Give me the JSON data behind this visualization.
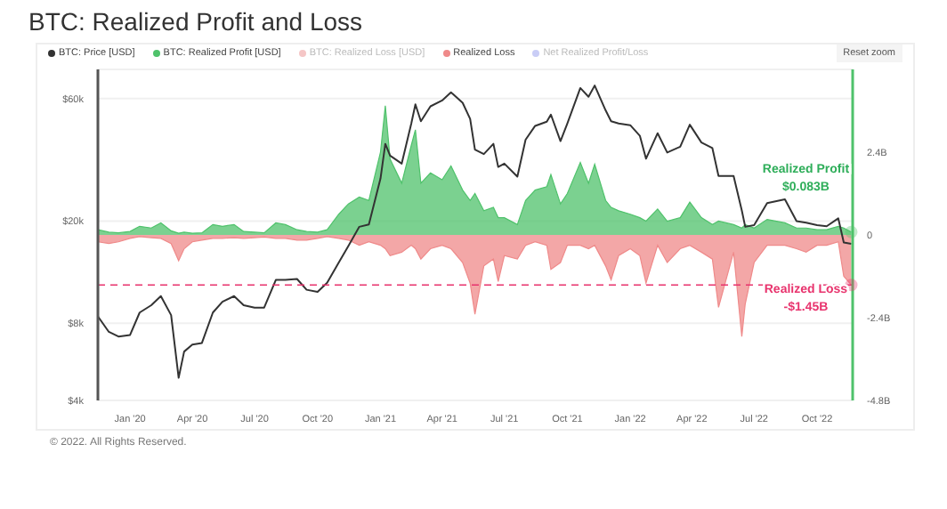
{
  "chart_data": {
    "type": "line",
    "title": "BTC: Realized Profit and Loss",
    "x": [
      "2019-11-15",
      "2019-12-01",
      "2019-12-15",
      "2020-01-01",
      "2020-01-15",
      "2020-02-01",
      "2020-02-15",
      "2020-03-01",
      "2020-03-12",
      "2020-03-20",
      "2020-04-01",
      "2020-04-15",
      "2020-05-01",
      "2020-05-15",
      "2020-06-01",
      "2020-06-15",
      "2020-07-01",
      "2020-07-15",
      "2020-08-01",
      "2020-08-15",
      "2020-09-01",
      "2020-09-15",
      "2020-10-01",
      "2020-10-15",
      "2020-11-01",
      "2020-11-15",
      "2020-12-01",
      "2020-12-15",
      "2021-01-01",
      "2021-01-08",
      "2021-01-15",
      "2021-02-01",
      "2021-02-15",
      "2021-02-21",
      "2021-03-01",
      "2021-03-15",
      "2021-04-01",
      "2021-04-14",
      "2021-05-01",
      "2021-05-12",
      "2021-05-19",
      "2021-06-01",
      "2021-06-15",
      "2021-06-22",
      "2021-07-01",
      "2021-07-20",
      "2021-08-01",
      "2021-08-15",
      "2021-09-01",
      "2021-09-07",
      "2021-09-21",
      "2021-10-01",
      "2021-10-20",
      "2021-11-01",
      "2021-11-10",
      "2021-11-26",
      "2021-12-04",
      "2021-12-15",
      "2022-01-01",
      "2022-01-15",
      "2022-01-24",
      "2022-02-10",
      "2022-02-24",
      "2022-03-15",
      "2022-03-29",
      "2022-04-15",
      "2022-05-01",
      "2022-05-10",
      "2022-06-01",
      "2022-06-13",
      "2022-06-18",
      "2022-07-01",
      "2022-07-20",
      "2022-08-15",
      "2022-09-01",
      "2022-09-15",
      "2022-10-01",
      "2022-10-15",
      "2022-11-01",
      "2022-11-09",
      "2022-11-20"
    ],
    "series": [
      {
        "name": "BTC: Price [USD]",
        "color": "#333333",
        "values": [
          8500,
          7400,
          7100,
          7200,
          8800,
          9400,
          10200,
          8600,
          4900,
          6200,
          6600,
          6700,
          8800,
          9700,
          10200,
          9400,
          9200,
          9200,
          11800,
          11800,
          11900,
          10800,
          10600,
          11500,
          13800,
          16000,
          19000,
          19400,
          29300,
          40000,
          36000,
          33500,
          48000,
          57000,
          49000,
          56000,
          59000,
          63500,
          57800,
          50000,
          38000,
          36500,
          40000,
          32500,
          33500,
          29800,
          41500,
          47000,
          48800,
          52000,
          41000,
          48000,
          66000,
          61000,
          67500,
          54000,
          49000,
          48000,
          47300,
          43000,
          35000,
          44000,
          37000,
          39000,
          47500,
          40500,
          38500,
          30000,
          30000,
          22000,
          19000,
          19300,
          23500,
          24300,
          20000,
          19700,
          19300,
          19100,
          20500,
          16500,
          16300
        ]
      },
      {
        "name": "BTC: Realized Profit [USD]",
        "type": "area",
        "axis": "y2",
        "color": "#4fc26b",
        "values": [
          0.15,
          0.08,
          0.06,
          0.1,
          0.25,
          0.2,
          0.35,
          0.12,
          0.05,
          0.08,
          0.05,
          0.06,
          0.3,
          0.25,
          0.3,
          0.1,
          0.08,
          0.06,
          0.35,
          0.3,
          0.15,
          0.1,
          0.08,
          0.15,
          0.6,
          0.9,
          1.1,
          1.0,
          2.4,
          3.75,
          2.2,
          1.5,
          2.6,
          3.05,
          1.5,
          1.8,
          1.6,
          2.0,
          1.3,
          1.0,
          1.2,
          0.7,
          0.8,
          0.5,
          0.5,
          0.3,
          1.0,
          1.3,
          1.4,
          1.75,
          0.9,
          1.2,
          2.1,
          1.5,
          2.05,
          1.0,
          0.8,
          0.7,
          0.6,
          0.5,
          0.4,
          0.75,
          0.4,
          0.5,
          0.95,
          0.5,
          0.3,
          0.4,
          0.3,
          0.2,
          0.3,
          0.2,
          0.45,
          0.35,
          0.2,
          0.2,
          0.15,
          0.15,
          0.25,
          0.2,
          0.083
        ]
      },
      {
        "name": "BTC: Realized Loss [USD]",
        "type": "area",
        "axis": "y2",
        "color": "#f5c6c6",
        "values": [
          null,
          null,
          null,
          null,
          null,
          null,
          null,
          null,
          null,
          null,
          null,
          null,
          null,
          null,
          null,
          null,
          null,
          null,
          null,
          null,
          null,
          null,
          null,
          null,
          null,
          null,
          null,
          null,
          null,
          null,
          null,
          null,
          null,
          null,
          null,
          null,
          null,
          null,
          null,
          null,
          null,
          null,
          null,
          null,
          null,
          null,
          null,
          null,
          null,
          null,
          null,
          null,
          null,
          null,
          null,
          null,
          null,
          null,
          null,
          null,
          null,
          null,
          null,
          null,
          null,
          null,
          null,
          null,
          null,
          null,
          null,
          null,
          null,
          null,
          null,
          null,
          null,
          null,
          null,
          null,
          null
        ]
      },
      {
        "name": "Realized Loss",
        "type": "area",
        "axis": "y2",
        "color": "#ef8a8a",
        "values": [
          -0.2,
          -0.25,
          -0.2,
          -0.1,
          -0.05,
          -0.08,
          -0.1,
          -0.25,
          -0.75,
          -0.4,
          -0.2,
          -0.15,
          -0.1,
          -0.1,
          -0.08,
          -0.1,
          -0.08,
          -0.06,
          -0.1,
          -0.1,
          -0.15,
          -0.15,
          -0.1,
          -0.05,
          -0.1,
          -0.15,
          -0.3,
          -0.2,
          -0.3,
          -0.4,
          -0.6,
          -0.5,
          -0.3,
          -0.4,
          -0.7,
          -0.4,
          -0.3,
          -0.4,
          -0.8,
          -1.4,
          -2.3,
          -0.9,
          -0.7,
          -1.35,
          -0.6,
          -0.7,
          -0.3,
          -0.2,
          -0.3,
          -1.0,
          -0.8,
          -0.3,
          -0.3,
          -0.4,
          -0.3,
          -0.9,
          -1.3,
          -0.6,
          -0.4,
          -0.6,
          -1.4,
          -0.3,
          -0.8,
          -0.4,
          -0.3,
          -0.5,
          -0.7,
          -2.1,
          -0.5,
          -2.95,
          -2.0,
          -0.8,
          -0.3,
          -0.3,
          -0.4,
          -0.5,
          -0.3,
          -0.3,
          -0.2,
          -1.2,
          -1.45
        ]
      },
      {
        "name": "Net Realized Profit/Loss",
        "type": "area",
        "axis": "y2",
        "color": "#c9cdf6",
        "values": [
          null,
          null,
          null,
          null,
          null,
          null,
          null,
          null,
          null,
          null,
          null,
          null,
          null,
          null,
          null,
          null,
          null,
          null,
          null,
          null,
          null,
          null,
          null,
          null,
          null,
          null,
          null,
          null,
          null,
          null,
          null,
          null,
          null,
          null,
          null,
          null,
          null,
          null,
          null,
          null,
          null,
          null,
          null,
          null,
          null,
          null,
          null,
          null,
          null,
          null,
          null,
          null,
          null,
          null,
          null,
          null,
          null,
          null,
          null,
          null,
          null,
          null,
          null,
          null,
          null,
          null,
          null,
          null,
          null,
          null,
          null,
          null,
          null,
          null,
          null,
          null,
          null,
          null,
          null,
          null,
          null
        ]
      }
    ],
    "log": "y",
    "ylim": [
      4000,
      78000
    ],
    "yticks": [
      {
        "value": 4000,
        "label": "$4k"
      },
      {
        "value": 8000,
        "label": "$8k"
      },
      {
        "value": 20000,
        "label": "$20k"
      },
      {
        "value": 60000,
        "label": "$60k"
      }
    ],
    "y2lim": [
      -4.8,
      4.8
    ],
    "y2ticks": [
      {
        "value": -4.8,
        "label": "-4.8B"
      },
      {
        "value": -2.4,
        "label": "-2.4B"
      },
      0,
      {
        "value": 2.4,
        "label": "2.4B"
      }
    ],
    "xlim": [
      "2019-11-15",
      "2022-11-22"
    ],
    "xticks": [
      {
        "value": "2020-01-01",
        "label": "Jan '20"
      },
      {
        "value": "2020-04-01",
        "label": "Apr '20"
      },
      {
        "value": "2020-07-01",
        "label": "Jul '20"
      },
      {
        "value": "2020-10-01",
        "label": "Oct '20"
      },
      {
        "value": "2021-01-01",
        "label": "Jan '21"
      },
      {
        "value": "2021-04-01",
        "label": "Apr '21"
      },
      {
        "value": "2021-07-01",
        "label": "Jul '21"
      },
      {
        "value": "2021-10-01",
        "label": "Oct '21"
      },
      {
        "value": "2022-01-01",
        "label": "Jan '22"
      },
      {
        "value": "2022-04-01",
        "label": "Apr '22"
      },
      {
        "value": "2022-07-01",
        "label": "Jul '22"
      },
      {
        "value": "2022-10-01",
        "label": "Oct '22"
      }
    ],
    "grid": "y",
    "legend": "top left",
    "ref_lines": [
      {
        "axis": "y2",
        "value": -1.45,
        "color": "#e8336d",
        "line_style": "dashed"
      }
    ],
    "annotations": [
      "Reset zoom",
      "Realized Profit $0.083B",
      "Realized Loss -$1.45B",
      "© 2022. All Rights Reserved."
    ]
  }
}
